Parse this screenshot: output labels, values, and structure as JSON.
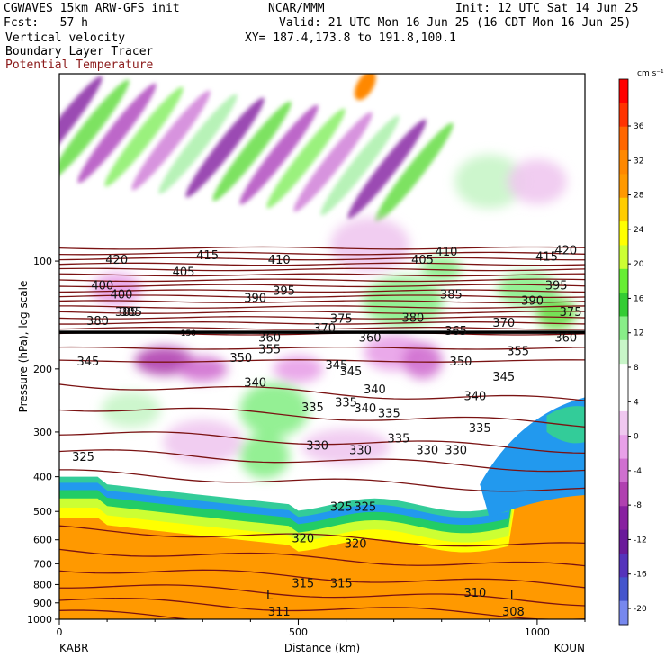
{
  "header": {
    "model": "CGWAVES 15km ARW-GFS init",
    "org": "NCAR/MMM",
    "init": "Init: 12 UTC Sat 14 Jun 25",
    "fcst": "Fcst:   57 h",
    "valid": "Valid: 21 UTC Mon 16 Jun 25 (16 CDT Mon 16 Jun 25)",
    "field1": "Vertical velocity",
    "xy": "XY= 187.4,173.8 to 191.8,100.1",
    "field2": "Boundary Layer Tracer",
    "field3": "Potential Temperature"
  },
  "chart_data": {
    "type": "heatmap",
    "xlabel": "Distance (km)",
    "ylabel": "Pressure (hPa), log scale",
    "x_ticks": [
      0,
      500,
      1000
    ],
    "y_ticks": [
      100,
      200,
      300,
      400,
      500,
      600,
      700,
      800,
      900,
      1000
    ],
    "x_range": [
      0,
      1100
    ],
    "y_range_hPa": [
      30,
      1000
    ],
    "left_station": "KABR",
    "right_station": "KOUN",
    "colorbar": {
      "unit": "cm s⁻¹",
      "ticks": [
        36,
        32,
        28,
        24,
        20,
        16,
        12,
        8,
        4,
        0,
        -4,
        -8,
        -12,
        -16,
        -20
      ],
      "colors": [
        "#ff0000",
        "#ff3300",
        "#ff6600",
        "#ff8800",
        "#ff9900",
        "#ffcc00",
        "#ffff00",
        "#ccff33",
        "#66ee33",
        "#33cc33",
        "#88ee88",
        "#c8f5c8",
        "#ffffff",
        "#ffffff",
        "#f0c8f0",
        "#e8a0e8",
        "#d070d0",
        "#b040b0",
        "#8820a0",
        "#6a1a9a",
        "#5533bb",
        "#4455cc",
        "#7788ee"
      ]
    },
    "isentrope_labels": [
      {
        "x": 120,
        "p": 100,
        "text": "420"
      },
      {
        "x": 310,
        "p": 97,
        "text": "415"
      },
      {
        "x": 460,
        "p": 100,
        "text": "410"
      },
      {
        "x": 260,
        "p": 108,
        "text": "405"
      },
      {
        "x": 90,
        "p": 118,
        "text": "400"
      },
      {
        "x": 470,
        "p": 122,
        "text": "395"
      },
      {
        "x": 410,
        "p": 128,
        "text": "390"
      },
      {
        "x": 150,
        "p": 140,
        "text": "385"
      },
      {
        "x": 80,
        "p": 148,
        "text": "380"
      },
      {
        "x": 590,
        "p": 146,
        "text": "375"
      },
      {
        "x": 555,
        "p": 155,
        "text": "370"
      },
      {
        "x": 440,
        "p": 165,
        "text": "360"
      },
      {
        "x": 440,
        "p": 178,
        "text": "355"
      },
      {
        "x": 380,
        "p": 188,
        "text": "350"
      },
      {
        "x": 60,
        "p": 192,
        "text": "345"
      },
      {
        "x": 580,
        "p": 197,
        "text": "345"
      },
      {
        "x": 410,
        "p": 220,
        "text": "340"
      },
      {
        "x": 660,
        "p": 230,
        "text": "340"
      },
      {
        "x": 690,
        "p": 268,
        "text": "335"
      },
      {
        "x": 530,
        "p": 258,
        "text": "335"
      },
      {
        "x": 710,
        "p": 315,
        "text": "335"
      },
      {
        "x": 540,
        "p": 330,
        "text": "330"
      },
      {
        "x": 630,
        "p": 340,
        "text": "330"
      },
      {
        "x": 50,
        "p": 355,
        "text": "325"
      },
      {
        "x": 590,
        "p": 490,
        "text": "325"
      },
      {
        "x": 640,
        "p": 490,
        "text": "325"
      },
      {
        "x": 510,
        "p": 600,
        "text": "320"
      },
      {
        "x": 620,
        "p": 620,
        "text": "320"
      },
      {
        "x": 510,
        "p": 800,
        "text": "315"
      },
      {
        "x": 590,
        "p": 800,
        "text": "315"
      },
      {
        "x": 870,
        "p": 850,
        "text": "310"
      },
      {
        "x": 460,
        "p": 960,
        "text": "311"
      },
      {
        "x": 950,
        "p": 960,
        "text": "308"
      },
      {
        "x": 990,
        "p": 130,
        "text": "390"
      },
      {
        "x": 1040,
        "p": 118,
        "text": "395"
      },
      {
        "x": 1020,
        "p": 98,
        "text": "415"
      },
      {
        "x": 1060,
        "p": 94,
        "text": "420"
      },
      {
        "x": 1070,
        "p": 140,
        "text": "375"
      },
      {
        "x": 930,
        "p": 150,
        "text": "370"
      },
      {
        "x": 830,
        "p": 158,
        "text": "365"
      },
      {
        "x": 1060,
        "p": 165,
        "text": "360"
      },
      {
        "x": 960,
        "p": 180,
        "text": "355"
      },
      {
        "x": 840,
        "p": 192,
        "text": "350"
      },
      {
        "x": 930,
        "p": 212,
        "text": "345"
      },
      {
        "x": 870,
        "p": 240,
        "text": "340"
      },
      {
        "x": 880,
        "p": 295,
        "text": "335"
      },
      {
        "x": 770,
        "p": 340,
        "text": "330"
      },
      {
        "x": 830,
        "p": 340,
        "text": "330"
      },
      {
        "x": 130,
        "p": 125,
        "text": "400"
      },
      {
        "x": 140,
        "p": 140,
        "text": "385"
      },
      {
        "x": 740,
        "p": 145,
        "text": "380"
      },
      {
        "x": 760,
        "p": 100,
        "text": "405"
      },
      {
        "x": 810,
        "p": 95,
        "text": "410"
      },
      {
        "x": 820,
        "p": 125,
        "text": "385"
      },
      {
        "x": 650,
        "p": 165,
        "text": "360"
      },
      {
        "x": 610,
        "p": 205,
        "text": "345"
      },
      {
        "x": 600,
        "p": 250,
        "text": "335"
      },
      {
        "x": 640,
        "p": 260,
        "text": "340"
      }
    ],
    "low_markers": [
      {
        "x": 440,
        "p": 880,
        "text": "L"
      },
      {
        "x": 950,
        "p": 880,
        "text": "L"
      }
    ],
    "tropopause_label": "150"
  }
}
